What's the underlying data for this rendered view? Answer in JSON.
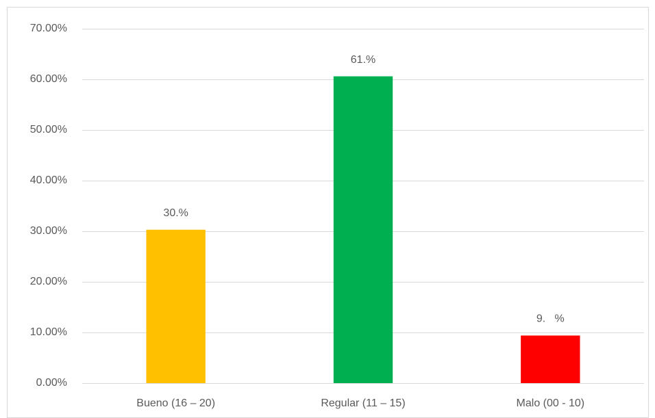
{
  "chart_data": {
    "type": "bar",
    "categories": [
      "Bueno (16 – 20)",
      "Regular (11 – 15)",
      "Malo (00 - 10)"
    ],
    "values": [
      30.3,
      60.6,
      9.4
    ],
    "value_labels": [
      "30.%",
      "61.%",
      "9.   %"
    ],
    "colors": [
      "#ffc000",
      "#00b050",
      "#ff0000"
    ],
    "ylim": [
      0,
      70
    ],
    "yticks": [
      {
        "value": 0,
        "label": "0.00%"
      },
      {
        "value": 10,
        "label": "10.00%"
      },
      {
        "value": 20,
        "label": "20.00%"
      },
      {
        "value": 30,
        "label": "30.00%"
      },
      {
        "value": 40,
        "label": "40.00%"
      },
      {
        "value": 50,
        "label": "50.00%"
      },
      {
        "value": 60,
        "label": "60.00%"
      },
      {
        "value": 70,
        "label": "70.00%"
      }
    ],
    "grid": true
  }
}
